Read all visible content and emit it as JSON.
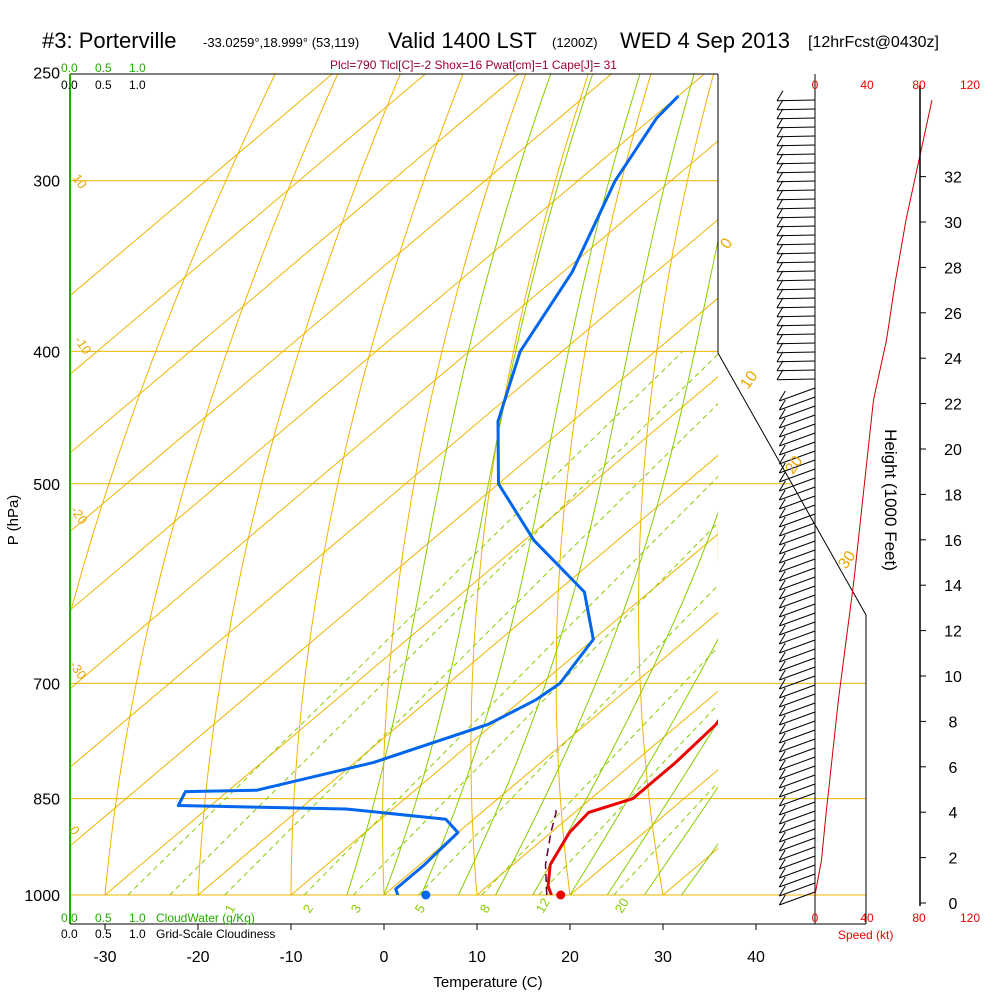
{
  "header": {
    "station": "#3: Porterville",
    "coords": "-33.0259°,18.999° (53,119)",
    "valid": "Valid 1400 LST",
    "utc": "(1200Z)",
    "date": "WED 4 Sep 2013",
    "forecast": "[12hrFcst@0430z]",
    "stats": "Plcl=790 Tlcl[C]=-2 Shox=16 Pwat[cm]=1 Cape[J]= 31"
  },
  "colors": {
    "temperature": "#ee0000",
    "dewpoint": "#0066ee",
    "isotherm": "#f0b400",
    "dry_adiabat": "#f0b400",
    "moist_adiabat": "#88cc00",
    "mixing_ratio": "#88cc00",
    "cloudwater": "#22aa00",
    "parcel": "#660033",
    "wind_speed": "#cc0000"
  },
  "chart_data": {
    "type": "line",
    "subtype": "skew-T log-P sounding",
    "xlabel": "Temperature (C)",
    "ylabel": "P (hPa)",
    "y2label": "Height (1000 Feet)",
    "xticks": [
      -30,
      -20,
      -10,
      0,
      10,
      20,
      30,
      40
    ],
    "pressure_ticks": [
      250,
      300,
      400,
      500,
      700,
      850,
      1000
    ],
    "height_ticks": [
      0,
      2,
      4,
      6,
      8,
      10,
      12,
      14,
      16,
      18,
      20,
      22,
      24,
      26,
      28,
      30,
      32
    ],
    "cloud_ticks_top": [
      "0.0",
      "0.5",
      "1.0"
    ],
    "cloudiness_ticks_top": [
      "0.0",
      "0.5",
      "1.0"
    ],
    "cloud_ticks_bottom": [
      "0.0",
      "0.5",
      "1.0"
    ],
    "cloudiness_ticks_bottom": [
      "0.0",
      "0.5",
      "1.0"
    ],
    "cloudwater_label": "CloudWater (g/Kg)",
    "cloudiness_label": "Grid-Scale Cloudiness",
    "speed_ticks_top": [
      "0",
      "40",
      "80",
      "120"
    ],
    "speed_ticks_bottom": [
      "0",
      "40",
      "80",
      "120"
    ],
    "speed_label": "Speed (kt)",
    "isotherm_labels": [
      "10",
      "0",
      "10",
      "20",
      "30",
      "-10",
      "-20",
      "-30",
      "0",
      "0"
    ],
    "dry_adiabat_labels_right": [
      "0",
      "10",
      "20",
      "30"
    ],
    "mixing_ratio_labels": [
      "1",
      "2",
      "3",
      "5",
      "8",
      "12",
      "20"
    ],
    "series": [
      {
        "name": "Temperature",
        "points": [
          [
            1000,
            18.0
          ],
          [
            985,
            16.5
          ],
          [
            950,
            14.0
          ],
          [
            900,
            12.0
          ],
          [
            870,
            11.5
          ],
          [
            850,
            14.5
          ],
          [
            800,
            14.5
          ],
          [
            750,
            14.0
          ],
          [
            700,
            12.0
          ],
          [
            650,
            9.0
          ],
          [
            600,
            6.0
          ],
          [
            550,
            3.0
          ],
          [
            500,
            -1.5
          ],
          [
            450,
            -7.0
          ],
          [
            400,
            -13.5
          ],
          [
            350,
            -21.5
          ],
          [
            300,
            -31.0
          ],
          [
            270,
            -36.5
          ],
          [
            260,
            -37.0
          ]
        ]
      },
      {
        "name": "Dewpoint",
        "points": [
          [
            1000,
            1.5
          ],
          [
            990,
            0.5
          ],
          [
            950,
            0.5
          ],
          [
            900,
            0.0
          ],
          [
            880,
            -3.0
          ],
          [
            865,
            -15.0
          ],
          [
            860,
            -33.5
          ],
          [
            840,
            -34.5
          ],
          [
            838,
            -27.0
          ],
          [
            800,
            -18.0
          ],
          [
            750,
            -10.5
          ],
          [
            720,
            -8.5
          ],
          [
            700,
            -8.0
          ],
          [
            650,
            -10.0
          ],
          [
            600,
            -17.0
          ],
          [
            550,
            -29.0
          ],
          [
            500,
            -40.0
          ],
          [
            450,
            -48.0
          ],
          [
            400,
            -54.5
          ],
          [
            350,
            -59.0
          ],
          [
            300,
            -66.0
          ],
          [
            270,
            -69.5
          ],
          [
            260,
            -70.0
          ]
        ]
      },
      {
        "name": "Parcel",
        "points": [
          [
            1000,
            17.5
          ],
          [
            950,
            13.5
          ],
          [
            900,
            10.0
          ],
          [
            870,
            8.0
          ],
          [
            860,
            7.0
          ]
        ]
      }
    ],
    "surface_temperature": 19.0,
    "surface_dewpoint": 4.5
  }
}
